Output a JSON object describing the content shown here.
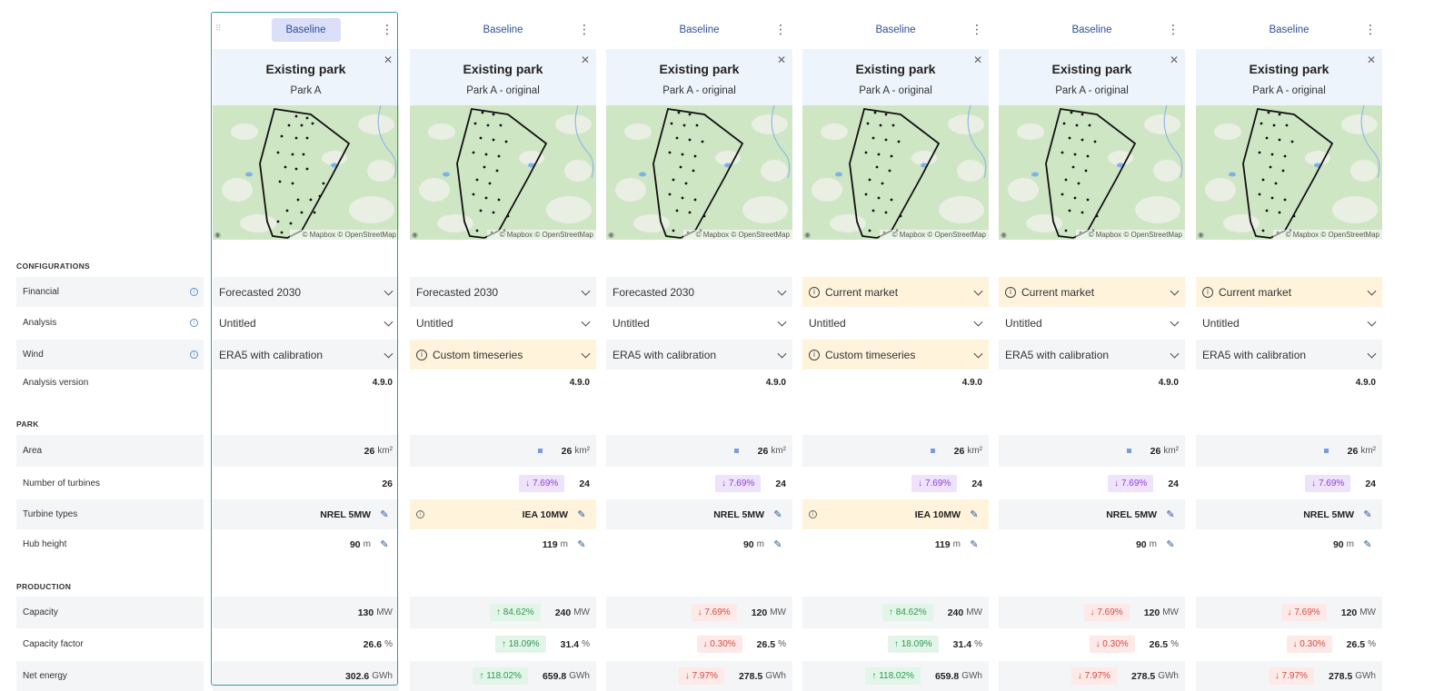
{
  "sections": {
    "configurations": "CONFIGURATIONS",
    "park": "PARK",
    "production": "PRODUCTION"
  },
  "row_labels": {
    "financial": "Financial",
    "analysis": "Analysis",
    "wind": "Wind",
    "analysis_version": "Analysis version",
    "area": "Area",
    "turbines": "Number of turbines",
    "turbine_types": "Turbine types",
    "hub_height": "Hub height",
    "capacity": "Capacity",
    "capacity_factor": "Capacity factor",
    "net_energy": "Net energy"
  },
  "icons": {
    "info": "info-circle-icon",
    "chevron": "chevron-down-icon",
    "kebab": "kebab-menu-icon",
    "close": "close-icon",
    "edit": "pencil-icon",
    "warning": "warning-circle-icon"
  },
  "colors": {
    "accent": "#3a9aa6",
    "tab_active": "#dcdff8",
    "link": "#2a4f9a",
    "up_green": "#2a9a50",
    "down_red": "#d9473d",
    "down_purple": "#8e3fd6",
    "warning_bg": "#fff3dc"
  },
  "units": {
    "area": "km²",
    "hub": "m",
    "capacity": "MW",
    "cf": "%",
    "energy": "GWh"
  },
  "map_attribution": "© Mapbox © OpenStreetMap",
  "columns": [
    {
      "tab": "Baseline",
      "active": true,
      "card_title": "Existing park",
      "card_subtitle": "Park A",
      "financial": "Forecasted 2030",
      "financial_warn": false,
      "analysis": "Untitled",
      "wind": "ERA5 with calibration",
      "wind_warn": false,
      "version": "4.9.0",
      "area": "26",
      "area_diff": false,
      "turbines": "26",
      "turbines_delta": "",
      "turbine_type": "NREL 5MW",
      "turbine_warn": false,
      "hub_height": "90",
      "capacity": "130",
      "capacity_delta": "",
      "capacity_dir": "",
      "cf": "26.6",
      "cf_delta": "",
      "cf_dir": "",
      "energy": "302.6",
      "energy_delta": "",
      "energy_dir": ""
    },
    {
      "tab": "Baseline",
      "active": false,
      "card_title": "Existing park",
      "card_subtitle": "Park A - original",
      "financial": "Forecasted 2030",
      "financial_warn": false,
      "analysis": "Untitled",
      "wind": "Custom timeseries",
      "wind_warn": true,
      "version": "4.9.0",
      "area": "26",
      "area_diff": true,
      "turbines": "24",
      "turbines_delta": "↓ 7.69%",
      "turbine_type": "IEA 10MW",
      "turbine_warn": true,
      "hub_height": "119",
      "capacity": "240",
      "capacity_delta": "↑ 84.62%",
      "capacity_dir": "up",
      "cf": "31.4",
      "cf_delta": "↑ 18.09%",
      "cf_dir": "up",
      "energy": "659.8",
      "energy_delta": "↑ 118.02%",
      "energy_dir": "up"
    },
    {
      "tab": "Baseline",
      "active": false,
      "card_title": "Existing park",
      "card_subtitle": "Park A - original",
      "financial": "Forecasted 2030",
      "financial_warn": false,
      "analysis": "Untitled",
      "wind": "ERA5 with calibration",
      "wind_warn": false,
      "version": "4.9.0",
      "area": "26",
      "area_diff": true,
      "turbines": "24",
      "turbines_delta": "↓ 7.69%",
      "turbine_type": "NREL 5MW",
      "turbine_warn": false,
      "hub_height": "90",
      "capacity": "120",
      "capacity_delta": "↓ 7.69%",
      "capacity_dir": "down",
      "cf": "26.5",
      "cf_delta": "↓ 0.30%",
      "cf_dir": "down",
      "energy": "278.5",
      "energy_delta": "↓ 7.97%",
      "energy_dir": "down"
    },
    {
      "tab": "Baseline",
      "active": false,
      "card_title": "Existing park",
      "card_subtitle": "Park A - original",
      "financial": "Current market",
      "financial_warn": true,
      "analysis": "Untitled",
      "wind": "Custom timeseries",
      "wind_warn": true,
      "version": "4.9.0",
      "area": "26",
      "area_diff": true,
      "turbines": "24",
      "turbines_delta": "↓ 7.69%",
      "turbine_type": "IEA 10MW",
      "turbine_warn": true,
      "hub_height": "119",
      "capacity": "240",
      "capacity_delta": "↑ 84.62%",
      "capacity_dir": "up",
      "cf": "31.4",
      "cf_delta": "↑ 18.09%",
      "cf_dir": "up",
      "energy": "659.8",
      "energy_delta": "↑ 118.02%",
      "energy_dir": "up"
    },
    {
      "tab": "Baseline",
      "active": false,
      "card_title": "Existing park",
      "card_subtitle": "Park A - original",
      "financial": "Current market",
      "financial_warn": true,
      "analysis": "Untitled",
      "wind": "ERA5 with calibration",
      "wind_warn": false,
      "version": "4.9.0",
      "area": "26",
      "area_diff": true,
      "turbines": "24",
      "turbines_delta": "↓ 7.69%",
      "turbine_type": "NREL 5MW",
      "turbine_warn": false,
      "hub_height": "90",
      "capacity": "120",
      "capacity_delta": "↓ 7.69%",
      "capacity_dir": "down",
      "cf": "26.5",
      "cf_delta": "↓ 0.30%",
      "cf_dir": "down",
      "energy": "278.5",
      "energy_delta": "↓ 7.97%",
      "energy_dir": "down"
    },
    {
      "tab": "Baseline",
      "active": false,
      "card_title": "Existing park",
      "card_subtitle": "Park A - original",
      "financial": "Current market",
      "financial_warn": true,
      "analysis": "Untitled",
      "wind": "ERA5 with calibration",
      "wind_warn": false,
      "version": "4.9.0",
      "area": "26",
      "area_diff": true,
      "turbines": "24",
      "turbines_delta": "↓ 7.69%",
      "turbine_type": "NREL 5MW",
      "turbine_warn": false,
      "hub_height": "90",
      "capacity": "120",
      "capacity_delta": "↓ 7.69%",
      "capacity_dir": "down",
      "cf": "26.5",
      "cf_delta": "↓ 0.30%",
      "cf_dir": "down",
      "energy": "278.5",
      "energy_delta": "↓ 7.97%",
      "energy_dir": "down"
    }
  ]
}
